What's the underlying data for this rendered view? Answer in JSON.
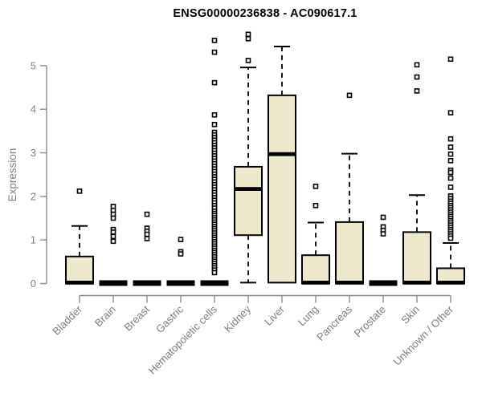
{
  "colors": {
    "box_fill": "#EEE8CD",
    "box_stroke": "#000000",
    "median": "#000000",
    "outlier_stroke": "#000000",
    "axis_line": "#8A8A8A",
    "axis_text": "#808080",
    "title": "#000000",
    "background": "#FFFFFF"
  },
  "chart_data": {
    "type": "boxplot",
    "title": "ENSG00000236838 - AC090617.1",
    "ylabel": "Expression",
    "xlabel": "",
    "ylim": [
      0,
      5.8
    ],
    "yticks": [
      0,
      1,
      2,
      3,
      4,
      5
    ],
    "grid": false,
    "legend": false,
    "categories": [
      "Bladder",
      "Brain",
      "Breast",
      "Gastric",
      "Hematopoietic cells",
      "Kidney",
      "Liver",
      "Lung",
      "Pancreas",
      "Prostate",
      "Skin",
      "Unknown / Other"
    ],
    "series": [
      {
        "name": "Bladder",
        "q1": 0,
        "median": 0.02,
        "q3": 0.62,
        "whisker_low": 0,
        "whisker_high": 1.32,
        "outliers": [
          2.12
        ]
      },
      {
        "name": "Brain",
        "q1": 0,
        "median": 0.01,
        "q3": 0.03,
        "whisker_low": 0,
        "whisker_high": 0.03,
        "outliers": [
          1.77,
          1.68,
          1.59,
          1.5,
          1.24,
          1.18,
          1.08,
          0.97
        ]
      },
      {
        "name": "Breast",
        "q1": 0,
        "median": 0.01,
        "q3": 0.03,
        "whisker_low": 0,
        "whisker_high": 0.03,
        "outliers": [
          1.59,
          1.27,
          1.2,
          1.13,
          1.03
        ]
      },
      {
        "name": "Gastric",
        "q1": 0,
        "median": 0.01,
        "q3": 0.03,
        "whisker_low": 0,
        "whisker_high": 0.03,
        "outliers": [
          1.01,
          0.73,
          0.68
        ]
      },
      {
        "name": "Hematopoietic cells",
        "q1": 0,
        "median": 0.01,
        "q3": 0.03,
        "whisker_low": 0,
        "whisker_high": 0.03,
        "outliers": [
          5.58,
          5.31,
          4.61,
          3.87,
          3.65,
          3.47,
          3.41,
          3.35,
          3.29,
          3.23,
          3.17,
          3.11,
          3.05,
          2.99,
          2.93,
          2.87,
          2.81,
          2.75,
          2.69,
          2.63,
          2.57,
          2.51,
          2.45,
          2.39,
          2.33,
          2.27,
          2.21,
          2.15,
          2.09,
          2.03,
          1.97,
          1.91,
          1.85,
          1.79,
          1.73,
          1.66,
          1.61,
          1.56,
          1.51,
          1.46,
          1.41,
          1.36,
          1.31,
          1.26,
          1.21,
          1.16,
          1.11,
          1.06,
          1.01,
          0.96,
          0.91,
          0.86,
          0.81,
          0.76,
          0.71,
          0.66,
          0.61,
          0.56,
          0.51,
          0.46,
          0.41,
          0.36,
          0.31,
          0.25
        ]
      },
      {
        "name": "Kidney",
        "q1": 1.11,
        "median": 2.17,
        "q3": 2.68,
        "whisker_low": 0.02,
        "whisker_high": 4.96,
        "outliers": [
          5.72,
          5.62,
          5.12
        ]
      },
      {
        "name": "Liver",
        "q1": 0.02,
        "median": 2.97,
        "q3": 4.32,
        "whisker_low": 0.02,
        "whisker_high": 5.44,
        "outliers": []
      },
      {
        "name": "Lung",
        "q1": 0,
        "median": 0.02,
        "q3": 0.65,
        "whisker_low": 0,
        "whisker_high": 1.4,
        "outliers": [
          2.23,
          1.79
        ]
      },
      {
        "name": "Pancreas",
        "q1": 0,
        "median": 0.02,
        "q3": 1.41,
        "whisker_low": 0,
        "whisker_high": 2.98,
        "outliers": [
          4.32
        ]
      },
      {
        "name": "Prostate",
        "q1": 0,
        "median": 0.01,
        "q3": 0.03,
        "whisker_low": 0,
        "whisker_high": 0.03,
        "outliers": [
          1.52,
          1.3,
          1.22,
          1.14
        ]
      },
      {
        "name": "Skin",
        "q1": 0,
        "median": 0.02,
        "q3": 1.18,
        "whisker_low": 0,
        "whisker_high": 2.03,
        "outliers": [
          5.02,
          4.74,
          4.42
        ]
      },
      {
        "name": "Unknown / Other",
        "q1": 0,
        "median": 0.02,
        "q3": 0.35,
        "whisker_low": 0,
        "whisker_high": 0.93,
        "outliers": [
          5.15,
          3.92,
          3.32,
          3.13,
          2.97,
          2.82,
          2.6,
          2.55,
          2.42,
          2.21,
          2.01,
          1.95,
          1.89,
          1.84,
          1.79,
          1.74,
          1.69,
          1.64,
          1.59,
          1.54,
          1.49,
          1.44,
          1.39,
          1.34,
          1.29,
          1.24,
          1.19,
          1.14,
          1.09,
          1.04
        ]
      }
    ]
  }
}
